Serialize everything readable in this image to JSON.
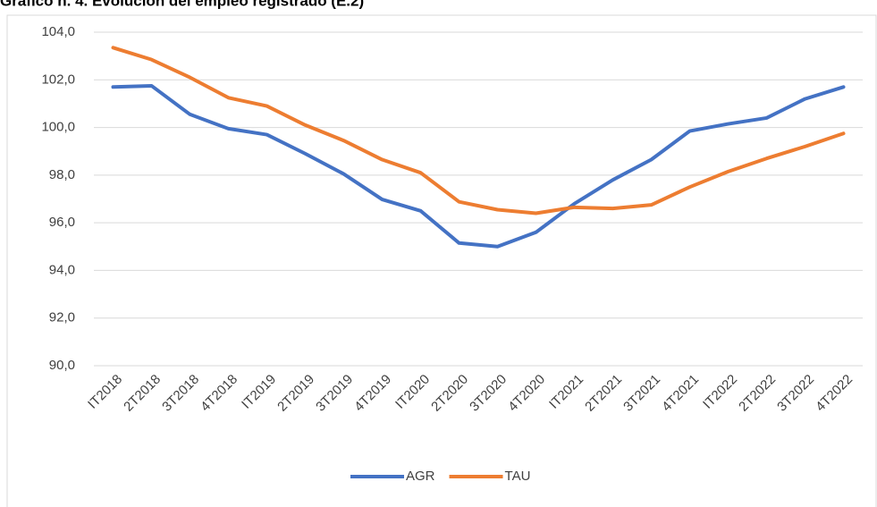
{
  "chart_data": {
    "type": "line",
    "title": "Gráfico n. 4. Evolución del empleo registrado (E.2)",
    "categories": [
      "IT2018",
      "2T2018",
      "3T2018",
      "4T2018",
      "IT2019",
      "2T2019",
      "3T2019",
      "4T2019",
      "IT2020",
      "2T2020",
      "3T2020",
      "4T2020",
      "IT2021",
      "2T2021",
      "3T2021",
      "4T2021",
      "IT2022",
      "2T2022",
      "3T2022",
      "4T2022"
    ],
    "series": [
      {
        "name": "AGR",
        "color": "#4472c4",
        "values": [
          101.7,
          101.75,
          100.55,
          99.95,
          99.7,
          98.9,
          98.05,
          96.98,
          96.5,
          95.15,
          95.0,
          95.6,
          96.8,
          97.8,
          98.65,
          99.85,
          100.15,
          100.4,
          101.2,
          101.7
        ]
      },
      {
        "name": "TAU",
        "color": "#ed7d31",
        "values": [
          103.35,
          102.85,
          102.1,
          101.25,
          100.9,
          100.1,
          99.45,
          98.65,
          98.1,
          96.88,
          96.55,
          96.4,
          96.65,
          96.6,
          96.75,
          97.5,
          98.15,
          98.7,
          99.2,
          99.75
        ]
      }
    ],
    "ylim": [
      90,
      104
    ],
    "yticks": [
      {
        "value": 90,
        "label": "90,0"
      },
      {
        "value": 92,
        "label": "92,0"
      },
      {
        "value": 94,
        "label": "94,0"
      },
      {
        "value": 96,
        "label": "96,0"
      },
      {
        "value": 98,
        "label": "98,0"
      },
      {
        "value": 100,
        "label": "100,0"
      },
      {
        "value": 102,
        "label": "102,0"
      },
      {
        "value": 104,
        "label": "104,0"
      }
    ],
    "grid": true,
    "legend": "bottom"
  }
}
